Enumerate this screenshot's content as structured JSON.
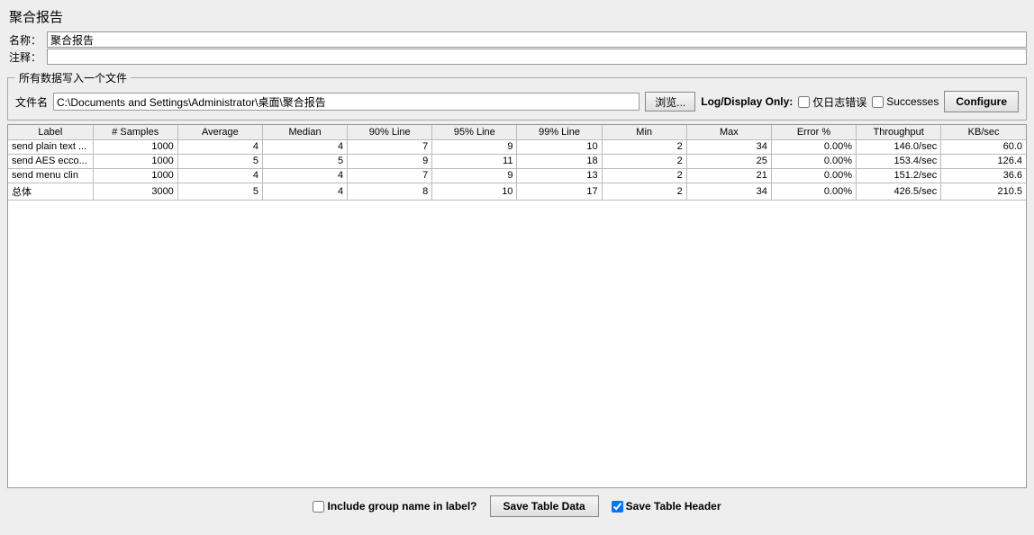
{
  "title": "聚合报告",
  "name_label": "名称：",
  "name_value": "聚合报告",
  "comment_label": "注释：",
  "comment_value": "",
  "fieldset_legend": "所有数据写入一个文件",
  "filename_label": "文件名",
  "filename_value": "C:\\Documents and Settings\\Administrator\\桌面\\聚合报告",
  "browse_label": "浏览...",
  "logdisplay_label": "Log/Display Only:",
  "errors_only_label": "仅日志错误",
  "successes_label": "Successes",
  "configure_label": "Configure",
  "columns": [
    "Label",
    "# Samples",
    "Average",
    "Median",
    "90% Line",
    "95% Line",
    "99% Line",
    "Min",
    "Max",
    "Error %",
    "Throughput",
    "KB/sec"
  ],
  "rows": [
    [
      "send plain text ...",
      "1000",
      "4",
      "4",
      "7",
      "9",
      "10",
      "2",
      "34",
      "0.00%",
      "146.0/sec",
      "60.0"
    ],
    [
      "send AES ecco...",
      "1000",
      "5",
      "5",
      "9",
      "11",
      "18",
      "2",
      "25",
      "0.00%",
      "153.4/sec",
      "126.4"
    ],
    [
      "send menu clin",
      "1000",
      "4",
      "4",
      "7",
      "9",
      "13",
      "2",
      "21",
      "0.00%",
      "151.2/sec",
      "36.6"
    ],
    [
      "总体",
      "3000",
      "5",
      "4",
      "8",
      "10",
      "17",
      "2",
      "34",
      "0.00%",
      "426.5/sec",
      "210.5"
    ]
  ],
  "include_group_label": "Include group name in label?",
  "save_table_label": "Save Table Data",
  "save_header_label": "Save Table Header"
}
